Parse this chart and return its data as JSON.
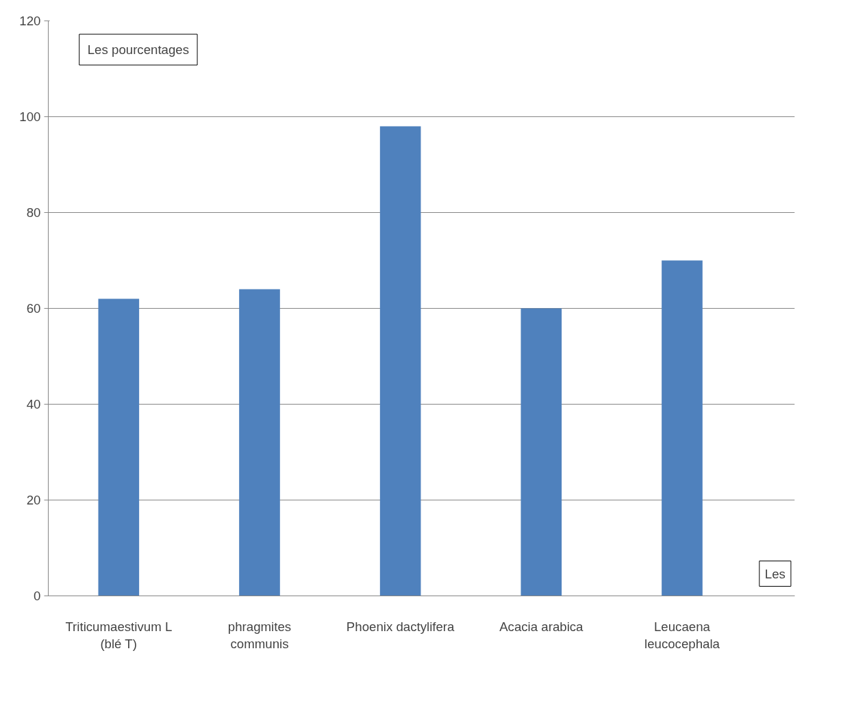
{
  "chart_data": {
    "type": "bar",
    "xlabel": "Les",
    "ylabel": "Les pourcentages",
    "categories": [
      "Triticumaestivum L\n(blé T)",
      "phragmites\ncommunis",
      "Phoenix dactylifera",
      "Acacia arabica",
      "Leucaena\nleucocephala"
    ],
    "values": [
      62,
      64,
      98,
      60,
      70
    ],
    "color": "#4f81bd",
    "ylim": [
      0,
      120
    ],
    "yticks": [
      0,
      20,
      40,
      60,
      80,
      100,
      120
    ],
    "grid": "y"
  }
}
